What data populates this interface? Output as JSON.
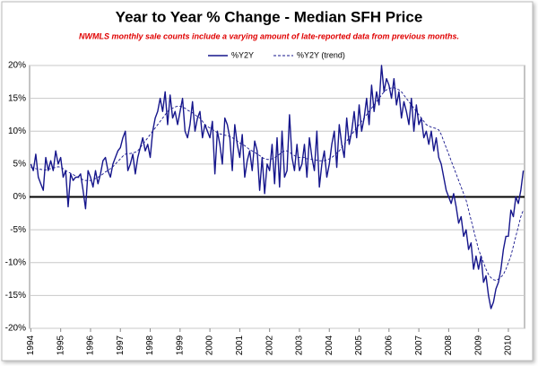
{
  "chart_data": {
    "type": "line",
    "title": "Year to Year % Change - Median SFH Price",
    "subtitle": "NWMLS monthly sale counts include a varying amount of late-reported data from previous months.",
    "legend": "top",
    "grid": true,
    "categories": [
      "1994",
      null,
      null,
      null,
      null,
      null,
      null,
      null,
      null,
      null,
      null,
      null,
      "1995",
      null,
      null,
      null,
      null,
      null,
      null,
      null,
      null,
      null,
      null,
      null,
      "1996",
      null,
      null,
      null,
      null,
      null,
      null,
      null,
      null,
      null,
      null,
      null,
      "1997",
      null,
      null,
      null,
      null,
      null,
      null,
      null,
      null,
      null,
      null,
      null,
      "1998",
      null,
      null,
      null,
      null,
      null,
      null,
      null,
      null,
      null,
      null,
      null,
      "1999",
      null,
      null,
      null,
      null,
      null,
      null,
      null,
      null,
      null,
      null,
      null,
      "2000",
      null,
      null,
      null,
      null,
      null,
      null,
      null,
      null,
      null,
      null,
      null,
      "2001",
      null,
      null,
      null,
      null,
      null,
      null,
      null,
      null,
      null,
      null,
      null,
      "2002",
      null,
      null,
      null,
      null,
      null,
      null,
      null,
      null,
      null,
      null,
      null,
      "2003",
      null,
      null,
      null,
      null,
      null,
      null,
      null,
      null,
      null,
      null,
      null,
      "2004",
      null,
      null,
      null,
      null,
      null,
      null,
      null,
      null,
      null,
      null,
      null,
      "2005",
      null,
      null,
      null,
      null,
      null,
      null,
      null,
      null,
      null,
      null,
      null,
      "2006",
      null,
      null,
      null,
      null,
      null,
      null,
      null,
      null,
      null,
      null,
      null,
      "2007",
      null,
      null,
      null,
      null,
      null,
      null,
      null,
      null,
      null,
      null,
      null,
      "2008",
      null,
      null,
      null,
      null,
      null,
      null,
      null,
      null,
      null,
      null,
      null,
      "2009",
      null,
      null,
      null,
      null,
      null,
      null,
      null,
      null,
      null,
      null,
      null,
      "2010",
      null,
      null,
      null,
      null,
      null,
      null
    ],
    "series": [
      {
        "name": "%Y2Y",
        "color": "#16168c",
        "style": "solid",
        "values": [
          5,
          4,
          6.5,
          3,
          2,
          1,
          6,
          4,
          5.5,
          4,
          7,
          5,
          6,
          3,
          4,
          -1.5,
          3.5,
          2.5,
          3,
          3,
          3.5,
          1,
          -1.8,
          4,
          3,
          1.5,
          4,
          2,
          3.5,
          5.5,
          6,
          4,
          3,
          5,
          6,
          7,
          7.5,
          9,
          10,
          4,
          5,
          6.5,
          3.5,
          6,
          7.5,
          9,
          7,
          8,
          6,
          10,
          12,
          13,
          15,
          13,
          16,
          11,
          15.5,
          12,
          13,
          11,
          13,
          15,
          10,
          9,
          11,
          14.5,
          10,
          12,
          13,
          9,
          11,
          10,
          9,
          11.5,
          3.5,
          10,
          8,
          5,
          12,
          11,
          9,
          4,
          11,
          8,
          6,
          9.5,
          3,
          5.5,
          7,
          4,
          8.5,
          7,
          1,
          6,
          0.5,
          5,
          4,
          8,
          2,
          9,
          1.5,
          10,
          3,
          4,
          12.5,
          6,
          4,
          8,
          4,
          5,
          8,
          3,
          9,
          6,
          4,
          10,
          1.5,
          5,
          7,
          3,
          5,
          8,
          10,
          4.5,
          11,
          8,
          6,
          12,
          8,
          10,
          13,
          9,
          14,
          10,
          12,
          15,
          11,
          17,
          13,
          16,
          14,
          20,
          16,
          18,
          17,
          15,
          18,
          14,
          16,
          12,
          14.5,
          13,
          11,
          15,
          10,
          14,
          11,
          12,
          9,
          10,
          8,
          10,
          7,
          9,
          6,
          5,
          3,
          1,
          0,
          -1,
          0.5,
          -1.5,
          -4,
          -3,
          -6,
          -5,
          -8,
          -7,
          -11,
          -9,
          -11,
          -9,
          -13,
          -12,
          -15,
          -17,
          -16,
          -14,
          -13,
          -11,
          -8,
          -6,
          -6,
          -2,
          -3,
          0,
          -1,
          1,
          4
        ]
      },
      {
        "name": "%Y2Y (trend)",
        "color": "#16168c",
        "style": "dashed",
        "values": [
          4.5,
          4.4,
          4.3,
          4.2,
          4.2,
          4.1,
          4.1,
          4.2,
          4.3,
          4.4,
          4.5,
          4.6,
          4.5,
          4.3,
          4,
          3.8,
          3.6,
          3.4,
          3.2,
          3,
          2.8,
          2.6,
          2.5,
          2.5,
          2.5,
          2.6,
          2.8,
          3,
          3.2,
          3.5,
          3.8,
          4,
          4.3,
          4.6,
          5,
          5.4,
          5.8,
          6.2,
          6.5,
          6.6,
          6.6,
          6.7,
          6.8,
          7,
          7.5,
          8,
          8.5,
          9,
          9.5,
          10,
          10.5,
          11,
          11.5,
          12,
          12.5,
          13,
          13.3,
          13.5,
          13.7,
          13.8,
          13.8,
          13.7,
          13.5,
          13.2,
          13,
          12.8,
          12.5,
          12.2,
          12,
          11.5,
          11,
          10.7,
          10.5,
          10.3,
          10,
          9.8,
          9.6,
          9.5,
          9.4,
          9.3,
          9.2,
          9,
          8.8,
          8.5,
          8.2,
          8,
          7.8,
          7.5,
          7.2,
          7,
          6.8,
          6.5,
          6.3,
          6,
          5.8,
          5.7,
          5.7,
          5.8,
          6,
          6.2,
          6.5,
          6.8,
          7,
          7,
          6.8,
          6.5,
          6.3,
          6,
          6,
          6,
          6,
          5.8,
          5.8,
          5.7,
          5.6,
          5.6,
          5.5,
          5.5,
          5.5,
          5.6,
          5.8,
          6,
          6.3,
          6.7,
          7,
          7.5,
          8,
          8.5,
          9,
          9.5,
          10,
          10.5,
          11,
          11.5,
          12,
          12.5,
          13,
          13.5,
          14,
          14.5,
          15,
          15.5,
          16,
          16.3,
          16.5,
          16.6,
          16.6,
          16.5,
          16.3,
          16,
          15.5,
          15,
          14.5,
          14,
          13.5,
          13,
          12.5,
          12,
          11.5,
          11,
          10.8,
          10.6,
          10.5,
          10.4,
          10.2,
          9.5,
          8.5,
          7.5,
          6.5,
          5.5,
          4.5,
          3.5,
          2.5,
          1.5,
          0.5,
          -0.5,
          -2,
          -3.5,
          -5,
          -6.5,
          -8,
          -9,
          -10,
          -11,
          -11.8,
          -12.3,
          -12.6,
          -12.7,
          -12.5,
          -12.2,
          -11.8,
          -11,
          -10,
          -9,
          -7.5,
          -6,
          -4.5,
          -3,
          -2
        ]
      }
    ],
    "ylim": [
      -20,
      20
    ],
    "yticks": [
      {
        "value": -20,
        "label": "-20%"
      },
      {
        "value": -15,
        "label": "-15%"
      },
      {
        "value": -10,
        "label": "-10%"
      },
      {
        "value": -5,
        "label": "-5%"
      },
      {
        "value": 0,
        "label": "0%"
      },
      {
        "value": 5,
        "label": "5%"
      },
      {
        "value": 10,
        "label": "10%"
      },
      {
        "value": 15,
        "label": "15%"
      },
      {
        "value": 20,
        "label": "20%"
      }
    ]
  }
}
